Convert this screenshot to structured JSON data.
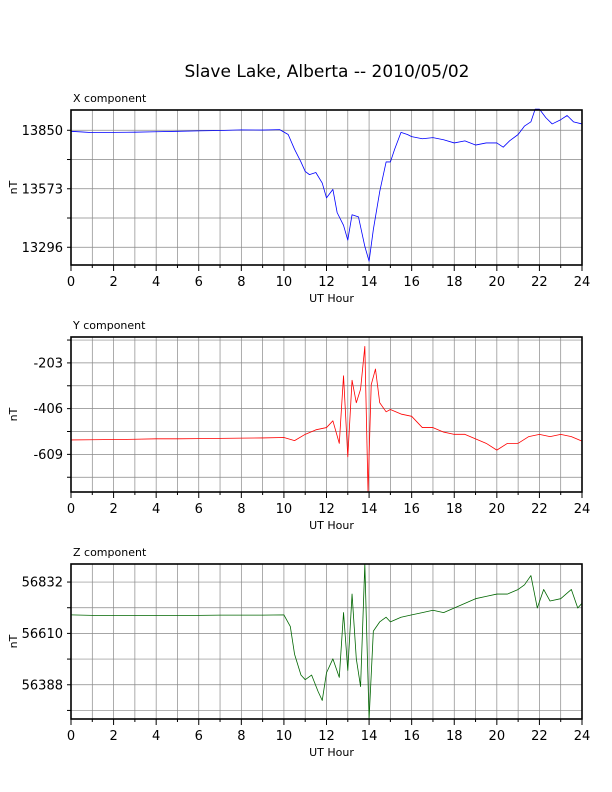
{
  "title": "Slave Lake, Alberta -- 2010/05/02",
  "chart_data": [
    {
      "type": "line",
      "panel_title": "X component",
      "xlabel": "UT Hour",
      "ylabel": "nT",
      "xlim": [
        0,
        24
      ],
      "xticks": [
        0,
        2,
        4,
        6,
        8,
        10,
        12,
        14,
        16,
        18,
        20,
        22,
        24
      ],
      "ylim": [
        13212,
        13946
      ],
      "yticks": [
        13296,
        13573,
        13850
      ],
      "grid": true,
      "color": "#0000ff",
      "series": [
        {
          "x": [
            0,
            0.5,
            1,
            2,
            3,
            4,
            5,
            6,
            7,
            8,
            9,
            9.8,
            10.2,
            10.5,
            10.8,
            11.0,
            11.2,
            11.5,
            11.8,
            12.0,
            12.3,
            12.5,
            12.8,
            13.0,
            13.2,
            13.5,
            13.8,
            14.0,
            14.2,
            14.5,
            14.8,
            15.0,
            15.2,
            15.5,
            15.8,
            16.0,
            16.5,
            17.0,
            17.5,
            18.0,
            18.5,
            19.0,
            19.5,
            20.0,
            20.3,
            20.6,
            21.0,
            21.3,
            21.6,
            21.8,
            22.0,
            22.3,
            22.6,
            23.0,
            23.3,
            23.6,
            24.0
          ],
          "values": [
            13845,
            13842,
            13839,
            13840,
            13841,
            13843,
            13845,
            13847,
            13849,
            13852,
            13851,
            13853,
            13830,
            13760,
            13700,
            13655,
            13640,
            13650,
            13600,
            13530,
            13570,
            13460,
            13400,
            13330,
            13450,
            13440,
            13300,
            13230,
            13380,
            13560,
            13700,
            13700,
            13760,
            13840,
            13830,
            13820,
            13810,
            13815,
            13805,
            13790,
            13800,
            13780,
            13790,
            13790,
            13770,
            13800,
            13830,
            13870,
            13890,
            13950,
            13950,
            13910,
            13880,
            13900,
            13920,
            13890,
            13880
          ]
        }
      ]
    },
    {
      "type": "line",
      "panel_title": "Y component",
      "xlabel": "UT Hour",
      "ylabel": "nT",
      "xlim": [
        0,
        24
      ],
      "xticks": [
        0,
        2,
        4,
        6,
        8,
        10,
        12,
        14,
        16,
        18,
        20,
        22,
        24
      ],
      "ylim": [
        -776,
        -88
      ],
      "yticks": [
        -609,
        -406,
        -203
      ],
      "grid": true,
      "color": "#ff0000",
      "series": [
        {
          "x": [
            0,
            1,
            2,
            3,
            4,
            5,
            6,
            7,
            8,
            9,
            10,
            10.5,
            11.0,
            11.5,
            12.0,
            12.3,
            12.6,
            12.8,
            13.0,
            13.2,
            13.4,
            13.6,
            13.8,
            13.95,
            14.1,
            14.3,
            14.5,
            14.8,
            15.0,
            15.5,
            16.0,
            16.5,
            17.0,
            17.5,
            18.0,
            18.5,
            19.0,
            19.5,
            20.0,
            20.5,
            21.0,
            21.5,
            22.0,
            22.5,
            23.0,
            23.5,
            24.0
          ],
          "values": [
            -545,
            -544,
            -543,
            -542,
            -540,
            -540,
            -539,
            -538,
            -537,
            -536,
            -534,
            -548,
            -520,
            -500,
            -490,
            -460,
            -560,
            -260,
            -620,
            -280,
            -380,
            -320,
            -130,
            -775,
            -300,
            -230,
            -380,
            -420,
            -410,
            -430,
            -440,
            -490,
            -490,
            -510,
            -520,
            -520,
            -540,
            -560,
            -590,
            -560,
            -560,
            -530,
            -520,
            -530,
            -520,
            -530,
            -550
          ]
        }
      ]
    },
    {
      "type": "line",
      "panel_title": "Z component",
      "xlabel": "UT Hour",
      "ylabel": "nT",
      "xlim": [
        0,
        24
      ],
      "xticks": [
        0,
        2,
        4,
        6,
        8,
        10,
        12,
        14,
        16,
        18,
        20,
        22,
        24
      ],
      "ylim": [
        56240,
        56910
      ],
      "yticks": [
        56388,
        56610,
        56832
      ],
      "grid": true,
      "color": "#006600",
      "series": [
        {
          "x": [
            0,
            1,
            2,
            3,
            4,
            5,
            6,
            7,
            8,
            9,
            10.0,
            10.3,
            10.5,
            10.8,
            11.0,
            11.3,
            11.6,
            11.8,
            12.0,
            12.3,
            12.6,
            12.8,
            13.0,
            13.2,
            13.4,
            13.6,
            13.8,
            14.0,
            14.2,
            14.5,
            14.8,
            15.0,
            15.5,
            16.0,
            16.5,
            17.0,
            17.5,
            18.0,
            18.5,
            19.0,
            19.5,
            20.0,
            20.5,
            21.0,
            21.3,
            21.6,
            21.9,
            22.2,
            22.5,
            23.0,
            23.5,
            23.8,
            24.0
          ],
          "values": [
            56690,
            56688,
            56687,
            56687,
            56688,
            56688,
            56688,
            56689,
            56689,
            56689,
            56690,
            56640,
            56520,
            56430,
            56410,
            56430,
            56360,
            56320,
            56440,
            56500,
            56420,
            56700,
            56450,
            56780,
            56500,
            56380,
            56910,
            56240,
            56620,
            56660,
            56680,
            56660,
            56680,
            56690,
            56700,
            56710,
            56700,
            56720,
            56740,
            56760,
            56770,
            56780,
            56780,
            56800,
            56820,
            56860,
            56720,
            56800,
            56750,
            56760,
            56800,
            56720,
            56740
          ]
        }
      ]
    }
  ]
}
